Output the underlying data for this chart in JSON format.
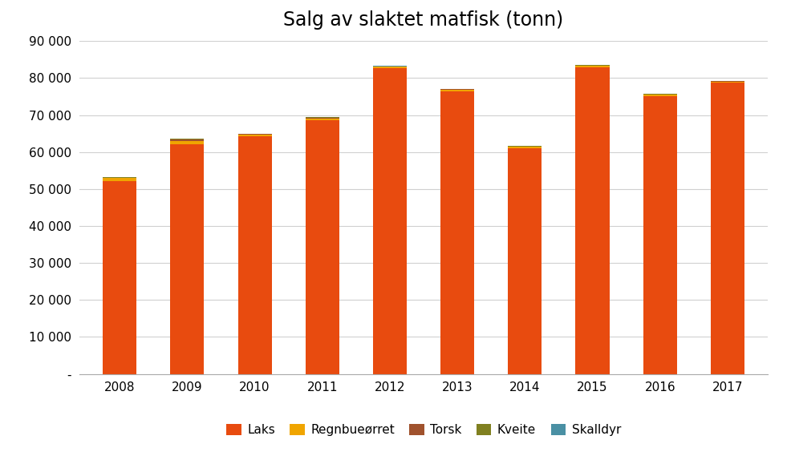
{
  "title": "Salg av slaktet matfisk (tonn)",
  "years": [
    2008,
    2009,
    2010,
    2011,
    2012,
    2013,
    2014,
    2015,
    2016,
    2017
  ],
  "categories": [
    "Laks",
    "Regnbueørret",
    "Torsk",
    "Kveite",
    "Skalldyr"
  ],
  "colors": [
    "#E84B0F",
    "#F0A500",
    "#A0522D",
    "#808020",
    "#4A90A4"
  ],
  "data": {
    "Laks": [
      52200,
      62200,
      64200,
      68500,
      82700,
      76500,
      61000,
      83000,
      75200,
      78700
    ],
    "Regnbueørret": [
      700,
      800,
      500,
      600,
      350,
      350,
      400,
      300,
      300,
      350
    ],
    "Torsk": [
      200,
      300,
      150,
      200,
      100,
      150,
      150,
      100,
      100,
      100
    ],
    "Kveite": [
      150,
      300,
      100,
      150,
      50,
      100,
      80,
      80,
      60,
      80
    ],
    "Skalldyr": [
      50,
      50,
      50,
      50,
      50,
      50,
      50,
      50,
      50,
      50
    ]
  },
  "ylim": [
    0,
    90000
  ],
  "yticks": [
    0,
    10000,
    20000,
    30000,
    40000,
    50000,
    60000,
    70000,
    80000,
    90000
  ],
  "ytick_labels": [
    "-",
    "10 000",
    "20 000",
    "30 000",
    "40 000",
    "50 000",
    "60 000",
    "70 000",
    "80 000",
    "90 000"
  ],
  "background_color": "#FFFFFF",
  "grid_color": "#D0D0D0",
  "title_fontsize": 17,
  "tick_fontsize": 11,
  "legend_fontsize": 11,
  "bar_width": 0.5
}
